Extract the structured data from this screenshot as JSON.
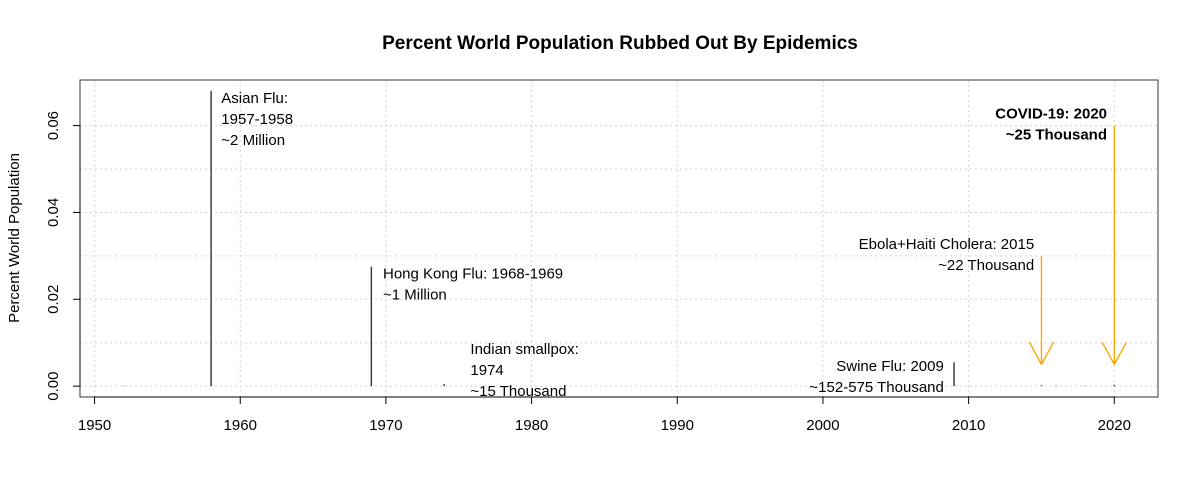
{
  "chart_data": {
    "type": "bar",
    "title": "Percent World Population Rubbed Out By Epidemics",
    "xlabel": "",
    "ylabel": "Percent World Population",
    "xlim": [
      1949,
      2023
    ],
    "ylim": [
      -0.0025,
      0.0705
    ],
    "xticks": [
      "1950",
      "1960",
      "1970",
      "1980",
      "1990",
      "2000",
      "2010",
      "2020"
    ],
    "yticks": [
      "0.00",
      "0.02",
      "0.04",
      "0.06"
    ],
    "grid": true,
    "bars": [
      {
        "x": 1952,
        "y": 0.0001
      },
      {
        "x": 1958,
        "y": 0.068
      },
      {
        "x": 1969,
        "y": 0.0275
      },
      {
        "x": 1974,
        "y": 0.0005
      },
      {
        "x": 2009,
        "y": 0.0055
      },
      {
        "x": 2015,
        "y": 0.0002
      },
      {
        "x": 2016,
        "y": 0.0001
      },
      {
        "x": 2018,
        "y": 0.0001
      },
      {
        "x": 2020,
        "y": 0.0003
      }
    ],
    "annotations": [
      {
        "id": "asian-flu",
        "x": 1958.7,
        "y": 0.068,
        "anchor": "start",
        "bold": false,
        "lines": [
          "Asian Flu:",
          "1957-1958",
          "~2 Million"
        ]
      },
      {
        "id": "hong-kong-flu",
        "x": 1969.8,
        "y": 0.0275,
        "anchor": "start",
        "bold": false,
        "lines": [
          "Hong Kong Flu: 1968-1969",
          "~1 Million"
        ]
      },
      {
        "id": "indian-smallpox",
        "x": 1975.8,
        "y": 0.0102,
        "anchor": "start",
        "bold": false,
        "lines": [
          "Indian smallpox:",
          "1974",
          "~15 Thousand"
        ]
      },
      {
        "id": "swine-flu",
        "x": 2008.3,
        "y": 0.0062,
        "anchor": "end",
        "bold": false,
        "lines": [
          "Swine Flu: 2009",
          "~152-575 Thousand"
        ]
      },
      {
        "id": "ebola-cholera",
        "x": 2014.5,
        "y": 0.0344,
        "anchor": "end",
        "bold": false,
        "lines": [
          "Ebola+Haiti Cholera: 2015",
          "~22 Thousand"
        ]
      },
      {
        "id": "covid-19",
        "x": 2019.5,
        "y": 0.0644,
        "anchor": "end",
        "bold": true,
        "lines": [
          "COVID-19: 2020",
          "~25 Thousand"
        ]
      }
    ],
    "arrows": [
      {
        "id": "ebola-arrow",
        "x": 2015,
        "y_from": 0.03,
        "y_to": 0.005,
        "color": "#FFA500"
      },
      {
        "id": "covid-arrow",
        "x": 2020,
        "y_from": 0.06,
        "y_to": 0.005,
        "color": "#FFA500"
      }
    ]
  }
}
